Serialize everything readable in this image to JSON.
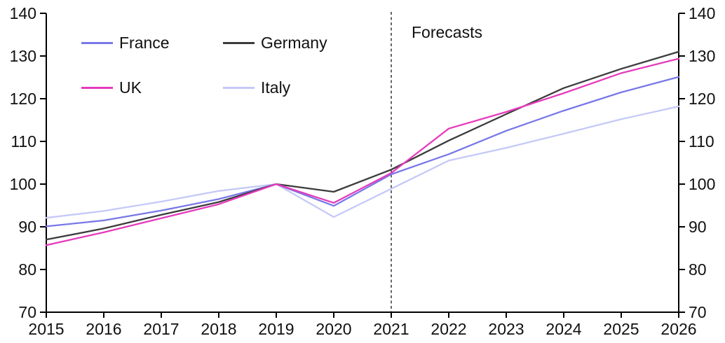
{
  "chart_data": {
    "type": "line",
    "title": "",
    "xlabel": "",
    "ylabel": "",
    "x": [
      2015,
      2016,
      2017,
      2018,
      2019,
      2020,
      2021,
      2022,
      2023,
      2024,
      2025,
      2026
    ],
    "series": [
      {
        "name": "France",
        "color": "#7878e8",
        "values": [
          90.1,
          91.5,
          93.8,
          96.5,
          100,
          94.9,
          102.3,
          107.0,
          112.5,
          117.2,
          121.5,
          125.1
        ]
      },
      {
        "name": "Germany",
        "color": "#3c3c3c",
        "values": [
          87.0,
          89.6,
          92.8,
          95.8,
          100,
          98.2,
          103.4,
          110.2,
          116.4,
          122.5,
          127.0,
          131.0
        ]
      },
      {
        "name": "UK",
        "color": "#e63abc",
        "values": [
          85.7,
          88.7,
          92.0,
          95.3,
          100,
          95.6,
          102.6,
          113.0,
          116.9,
          121.3,
          126.0,
          129.4
        ]
      },
      {
        "name": "Italy",
        "color": "#c5c9f7",
        "values": [
          92.1,
          93.7,
          95.9,
          98.4,
          100,
          92.3,
          98.9,
          105.5,
          108.5,
          111.8,
          115.2,
          118.2
        ]
      }
    ],
    "ylim": [
      70,
      140
    ],
    "y_tick_step": 10,
    "y_tick_labels": [
      "70",
      "80",
      "90",
      "100",
      "110",
      "120",
      "130",
      "140"
    ],
    "y_axis_sides": "both",
    "grid": false,
    "legend_position": "top-left-two-columns",
    "axis_color": "#000000",
    "annotations": {
      "forecast_label": "Forecasts",
      "forecast_line_x": 2021,
      "forecast_line_style": "dashed"
    }
  }
}
